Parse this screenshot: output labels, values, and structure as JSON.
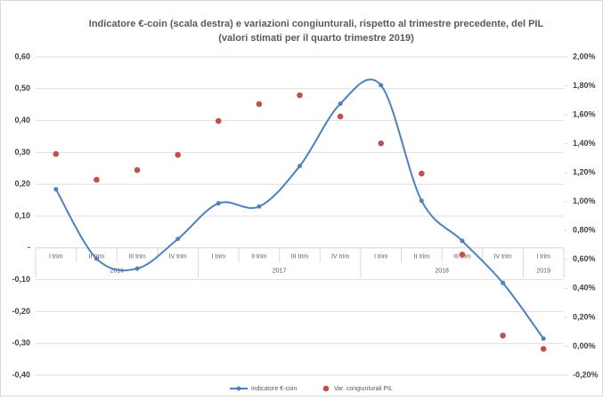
{
  "chart_data": {
    "type": "line",
    "title": "Indicatore €-coin (scala destra) e variazioni congiunturali, rispetto al trimestre precedente, del PIL",
    "subtitle": "(valori stimati per il quarto trimestre 2019)",
    "categories": [
      "I trim",
      "II trim",
      "III trim",
      "IV trim",
      "I trim",
      "II trim",
      "III trim",
      "IV trim",
      "I trim",
      "II trim",
      "III trim",
      "IV trim",
      "I trim"
    ],
    "group_labels": [
      "2016",
      null,
      null,
      null,
      "2017",
      null,
      null,
      null,
      "2018",
      null,
      null,
      null,
      "2019"
    ],
    "series": [
      {
        "name": "indicatore €-coin",
        "color": "#4f81bd",
        "style": "line",
        "axis": "y",
        "values": [
          0.184,
          -0.034,
          -0.065,
          0.028,
          0.14,
          0.13,
          0.257,
          0.453,
          0.511,
          0.148,
          0.022,
          -0.11,
          -0.285
        ]
      },
      {
        "name": "Var. congiunturali PIL",
        "color": "#c0504d",
        "style": "markers",
        "axis": "y2",
        "values": [
          1.329,
          1.151,
          1.218,
          1.323,
          1.557,
          1.674,
          1.735,
          1.588,
          1.403,
          1.194,
          0.634,
          0.074,
          -0.018
        ]
      }
    ],
    "ylim": [
      -0.4,
      0.6
    ],
    "yticks": [
      {
        "value": 0.6,
        "label": "0,60"
      },
      {
        "value": 0.5,
        "label": "0,50"
      },
      {
        "value": 0.4,
        "label": "0,40"
      },
      {
        "value": 0.3,
        "label": "0,30"
      },
      {
        "value": 0.2,
        "label": "0,20"
      },
      {
        "value": 0.1,
        "label": "0,10"
      },
      {
        "value": 0,
        "label": "-"
      },
      {
        "value": -0.1,
        "label": "-0,10"
      },
      {
        "value": -0.2,
        "label": "-0,20"
      },
      {
        "value": -0.3,
        "label": "-0,30"
      },
      {
        "value": -0.4,
        "label": "-0,40"
      }
    ],
    "y2lim": [
      -0.2,
      2.0
    ],
    "y2ticks": [
      {
        "value": 2.0,
        "label": "2,00%"
      },
      {
        "value": 1.8,
        "label": "1,80%"
      },
      {
        "value": 1.6,
        "label": "1,60%"
      },
      {
        "value": 1.4,
        "label": "1,40%"
      },
      {
        "value": 1.2,
        "label": "1,20%"
      },
      {
        "value": 1.0,
        "label": "1,00%"
      },
      {
        "value": 0.8,
        "label": "0,80%"
      },
      {
        "value": 0.6,
        "label": "0,60%"
      },
      {
        "value": 0.4,
        "label": "0,40%"
      },
      {
        "value": 0.2,
        "label": "0,20%"
      },
      {
        "value": 0,
        "label": "0,00%"
      },
      {
        "value": -0.2,
        "label": "-0,20%"
      }
    ],
    "grid": true
  }
}
